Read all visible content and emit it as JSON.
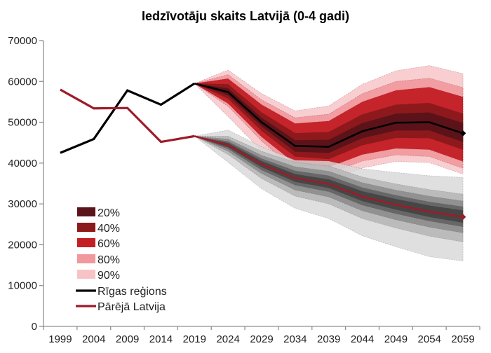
{
  "title": "Iedzīvotāju skaits Latvijā (0-4 gadi)",
  "colors": {
    "background": "#ffffff",
    "axis": "#909090",
    "label_text": "#1f1f1f",
    "riga_line": "#000000",
    "pareja_line": "#9e1b28",
    "red_bands": {
      "20": "#5a141a",
      "40": "#8c191c",
      "60": "#c32026",
      "80": "#f0989c",
      "90": "#f8c3c6"
    },
    "gray_bands": {
      "20": "#454545",
      "40": "#656565",
      "60": "#8f8f8f",
      "80": "#b7b7b7",
      "90": "#d8d8d8"
    }
  },
  "legend": {
    "band_items": [
      {
        "label": "20%",
        "color": "#5a141a"
      },
      {
        "label": "40%",
        "color": "#8c191c"
      },
      {
        "label": "60%",
        "color": "#c32026"
      },
      {
        "label": "80%",
        "color": "#f0989c"
      },
      {
        "label": "90%",
        "color": "#f8c3c6"
      }
    ],
    "line_items": [
      {
        "label": "Rīgas reģions",
        "color": "#000000"
      },
      {
        "label": "Pārējā Latvija",
        "color": "#9e1b28"
      }
    ]
  },
  "chart_data": {
    "type": "line",
    "subtype": "fan-chart-projection",
    "title": "Iedzīvotāju skaits Latvijā (0-4 gadi)",
    "xlabel": "",
    "ylabel": "",
    "ylim": [
      0,
      70000
    ],
    "y_ticks": [
      0,
      10000,
      20000,
      30000,
      40000,
      50000,
      60000,
      70000
    ],
    "x_ticks": [
      1999,
      2004,
      2009,
      2014,
      2019,
      2024,
      2029,
      2034,
      2039,
      2044,
      2049,
      2054,
      2059
    ],
    "grid": false,
    "legend_position": "inside-left-bottom",
    "hist_years": [
      1999,
      2004,
      2009,
      2014,
      2019
    ],
    "proj_years": [
      2019,
      2024,
      2029,
      2034,
      2039,
      2044,
      2049,
      2054,
      2059
    ],
    "series": [
      {
        "name": "Rīgas reģions",
        "line_color": "#000000",
        "hist": [
          42500,
          45900,
          57800,
          54300,
          59500
        ],
        "median": [
          59500,
          57400,
          50000,
          44200,
          44000,
          47800,
          49900,
          50000,
          47300
        ],
        "bands": [
          {
            "level": "90",
            "color": "#f8c3c6",
            "top": [
              59500,
              62800,
              57000,
              52800,
              54000,
              59300,
              62600,
              63900,
              61900
            ],
            "bottom": [
              59500,
              51400,
              43000,
              36500,
              35600,
              38800,
              40400,
              40100,
              37300
            ]
          },
          {
            "level": "80",
            "color": "#f0989c",
            "top": [
              59500,
              61700,
              55500,
              51100,
              52000,
              57000,
              60000,
              60800,
              58500
            ],
            "bottom": [
              59500,
              53900,
              45400,
              38200,
              37400,
              40500,
              42000,
              41600,
              38700
            ]
          },
          {
            "level": "60",
            "color": "#c32026",
            "top": [
              59500,
              60700,
              54300,
              49700,
              50300,
              55000,
              57800,
              58600,
              56200
            ],
            "bottom": [
              59500,
              54600,
              46400,
              39900,
              39000,
              42100,
              43600,
              43300,
              40400
            ]
          },
          {
            "level": "40",
            "color": "#8c191c",
            "top": [
              59500,
              59300,
              52400,
              47300,
              47600,
              51900,
              54300,
              54700,
              52100
            ],
            "bottom": [
              59500,
              55800,
              47900,
              41600,
              41000,
              44400,
              46200,
              46100,
              43300
            ]
          },
          {
            "level": "20",
            "color": "#5a141a",
            "top": [
              59500,
              58300,
              51100,
              45600,
              45700,
              49800,
              52100,
              52400,
              49800
            ],
            "bottom": [
              59500,
              56600,
              49000,
              42800,
              42500,
              46100,
              48000,
              48000,
              45200
            ]
          }
        ]
      },
      {
        "name": "Pārējā Latvija",
        "line_color": "#9e1b28",
        "hist": [
          58000,
          53400,
          53500,
          45200,
          46600
        ],
        "median": [
          46600,
          44400,
          39700,
          36300,
          34900,
          31800,
          29800,
          28100,
          26800
        ],
        "bands": [
          {
            "level": "90",
            "color": "#d8d8d8",
            "top": [
              46600,
              48100,
              44000,
              40700,
              40500,
              38600,
              37700,
              36900,
              36500
            ],
            "bottom": [
              46600,
              40200,
              33700,
              28900,
              26400,
              22200,
              19500,
              17100,
              16000
            ]
          },
          {
            "level": "80",
            "color": "#b7b7b7",
            "top": [
              46600,
              46600,
              42900,
              40200,
              39300,
              36600,
              34900,
              33500,
              32400
            ],
            "bottom": [
              46600,
              42100,
              36200,
              31900,
              30000,
              26400,
              24100,
              22100,
              20700
            ]
          },
          {
            "level": "60",
            "color": "#8f8f8f",
            "top": [
              46600,
              45900,
              41900,
              39100,
              38000,
              35200,
              33400,
              31900,
              30700
            ],
            "bottom": [
              46600,
              42900,
              37400,
              33400,
              31700,
              28300,
              26100,
              24300,
              22900
            ]
          },
          {
            "level": "40",
            "color": "#656565",
            "top": [
              46600,
              45300,
              41100,
              38100,
              36900,
              34000,
              32100,
              30500,
              29300
            ],
            "bottom": [
              46600,
              43500,
              38300,
              34600,
              33000,
              29700,
              27600,
              25800,
              24400
            ]
          },
          {
            "level": "20",
            "color": "#454545",
            "top": [
              46600,
              44900,
              40500,
              37300,
              36000,
              33100,
              31200,
              29600,
              28400
            ],
            "bottom": [
              46600,
              43900,
              39000,
              35400,
              33900,
              30700,
              28600,
              26800,
              25400
            ]
          }
        ]
      }
    ]
  }
}
